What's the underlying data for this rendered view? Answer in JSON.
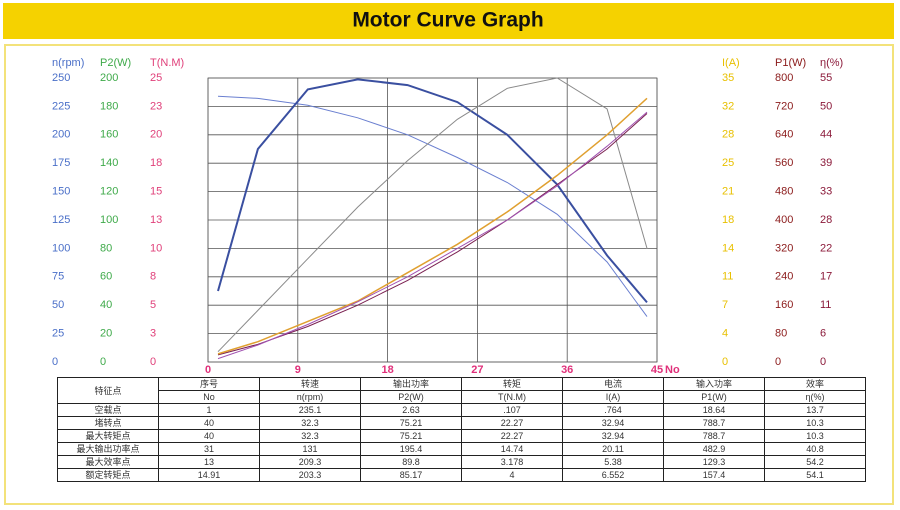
{
  "title": "Motor Curve Graph",
  "chart_data": {
    "type": "line",
    "x": [
      1,
      5,
      10,
      15,
      20,
      25,
      30,
      35,
      40,
      44
    ],
    "xlim": [
      0,
      45
    ],
    "xticks": [
      0,
      9,
      18,
      27,
      36,
      45
    ],
    "x_label": "No",
    "x_color": "#e0307a",
    "grid": true,
    "y_axes": [
      {
        "label": "n(rpm)",
        "color": "#4a6fc8",
        "side": "left",
        "ylim": [
          0,
          250
        ],
        "yticks": [
          0,
          25,
          50,
          75,
          100,
          125,
          150,
          175,
          200,
          225,
          250
        ]
      },
      {
        "label": "P2(W)",
        "color": "#3faa4a",
        "side": "left",
        "ylim": [
          0,
          200
        ],
        "yticks": [
          0,
          20,
          40,
          60,
          80,
          100,
          120,
          140,
          160,
          180,
          200
        ]
      },
      {
        "label": "T(N.M)",
        "color": "#e0407a",
        "side": "left",
        "ylim": [
          0,
          25
        ],
        "yticks": [
          0,
          {
            "value": 2.5,
            "label": "3"
          },
          5,
          {
            "value": 7.5,
            "label": "8"
          },
          10,
          {
            "value": 12.5,
            "label": "13"
          },
          15,
          {
            "value": 17.5,
            "label": "18"
          },
          20,
          {
            "value": 22.5,
            "label": "23"
          },
          25
        ]
      },
      {
        "label": "I(A)",
        "color": "#e8c000",
        "side": "right",
        "ylim": [
          0,
          35
        ],
        "yticks": [
          0,
          {
            "value": 3.5,
            "label": "4"
          },
          7,
          {
            "value": 10.5,
            "label": "11"
          },
          14,
          {
            "value": 17.5,
            "label": "18"
          },
          21,
          {
            "value": 24.5,
            "label": "25"
          },
          28,
          {
            "value": 31.5,
            "label": "32"
          },
          35
        ]
      },
      {
        "label": "P1(W)",
        "color": "#8b1a1a",
        "side": "right",
        "ylim": [
          0,
          800
        ],
        "yticks": [
          0,
          80,
          160,
          240,
          320,
          400,
          480,
          560,
          640,
          720,
          800
        ]
      },
      {
        "label": "η(%)",
        "color": "#8b1a3a",
        "side": "right",
        "ylim": [
          0,
          55
        ],
        "yticks": [
          0,
          {
            "value": 5.5,
            "label": "6"
          },
          11,
          {
            "value": 16.5,
            "label": "17"
          },
          22,
          {
            "value": 27.5,
            "label": "28"
          },
          33,
          {
            "value": 38.5,
            "label": "39"
          },
          44,
          {
            "value": 49.5,
            "label": "50"
          },
          55
        ]
      }
    ],
    "series": [
      {
        "axis": 0,
        "color": "#6a7fd0",
        "width": 1,
        "values": [
          234,
          232,
          226,
          215,
          200,
          180,
          158,
          130,
          88,
          40
        ]
      },
      {
        "axis": 1,
        "color": "#3a4fa0",
        "width": 2,
        "values": [
          50,
          150,
          192,
          199,
          195,
          183,
          160,
          125,
          75,
          42
        ]
      },
      {
        "axis": 5,
        "color": "#8a8a8a",
        "width": 1,
        "values": [
          2,
          10,
          20,
          30,
          39,
          47,
          53,
          55,
          49,
          22
        ]
      },
      {
        "axis": 4,
        "color": "#7a2050",
        "width": 1,
        "values": [
          20,
          50,
          100,
          160,
          230,
          310,
          400,
          500,
          600,
          700
        ]
      },
      {
        "axis": 3,
        "color": "#e0a030",
        "width": 1.5,
        "values": [
          1,
          2.5,
          5,
          7.5,
          11,
          14.5,
          18.5,
          23,
          28,
          32.5
        ]
      },
      {
        "axis": 2,
        "color": "#a050b0",
        "width": 1,
        "values": [
          0.3,
          1.5,
          3.3,
          5.3,
          7.5,
          10,
          12.5,
          15.5,
          19,
          22
        ]
      }
    ]
  },
  "table": {
    "header": [
      "特征点",
      "序号",
      "转速",
      "输出功率",
      "转矩",
      "电流",
      "输入功率",
      "效率"
    ],
    "units": [
      "No",
      "n(rpm)",
      "P2(W)",
      "T(N.M)",
      "I(A)",
      "P1(W)",
      "η(%)"
    ],
    "rows": [
      [
        "空载点",
        "1",
        "235.1",
        "2.63",
        ".107",
        ".764",
        "18.64",
        "13.7"
      ],
      [
        "堵转点",
        "40",
        "32.3",
        "75.21",
        "22.27",
        "32.94",
        "788.7",
        "10.3"
      ],
      [
        "最大转矩点",
        "40",
        "32.3",
        "75.21",
        "22.27",
        "32.94",
        "788.7",
        "10.3"
      ],
      [
        "最大输出功率点",
        "31",
        "131",
        "195.4",
        "14.74",
        "20.11",
        "482.9",
        "40.8"
      ],
      [
        "最大效率点",
        "13",
        "209.3",
        "89.8",
        "3.178",
        "5.38",
        "129.3",
        "54.2"
      ],
      [
        "额定转矩点",
        "14.91",
        "203.3",
        "85.17",
        "4",
        "6.552",
        "157.4",
        "54.1"
      ]
    ]
  }
}
